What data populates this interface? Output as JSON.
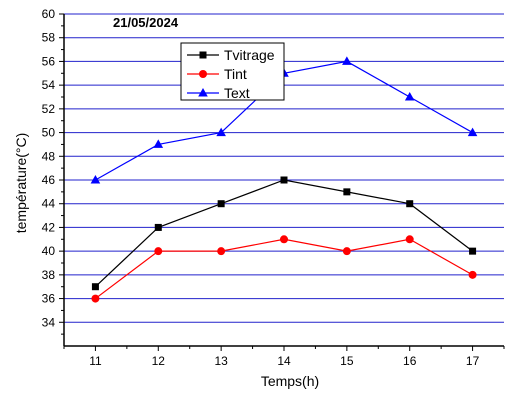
{
  "chart_data": {
    "type": "line",
    "date_label": "21/05/2024",
    "xlabel": "Temps(h)",
    "ylabel": "température(°C)",
    "x": [
      11,
      12,
      13,
      14,
      15,
      16,
      17
    ],
    "xlim": [
      10.5,
      17.5
    ],
    "ylim": [
      32,
      60
    ],
    "y_ticks": [
      34,
      36,
      38,
      40,
      42,
      44,
      46,
      48,
      50,
      52,
      54,
      56,
      58,
      60
    ],
    "grid": true,
    "grid_color": "#2222cc",
    "legend_position": "top-center",
    "series": [
      {
        "name": "Tvitrage",
        "values": [
          37,
          42,
          44,
          46,
          45,
          44,
          40
        ],
        "color": "#000000",
        "marker": "square"
      },
      {
        "name": "Tint",
        "values": [
          36,
          40,
          40,
          41,
          40,
          41,
          38
        ],
        "color": "#ff0000",
        "marker": "circle"
      },
      {
        "name": "Text",
        "values": [
          46,
          49,
          50,
          55,
          56,
          53,
          50
        ],
        "color": "#0000ff",
        "marker": "triangle"
      }
    ]
  }
}
